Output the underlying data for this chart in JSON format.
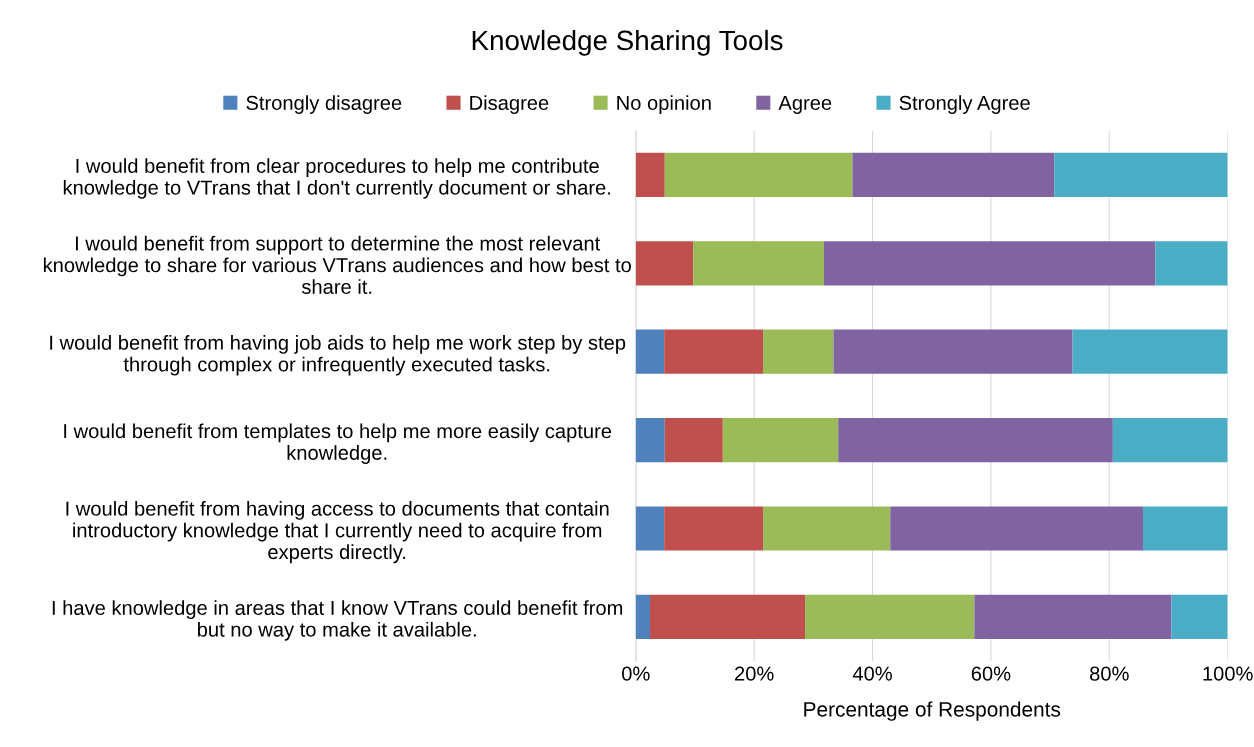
{
  "chart_data": {
    "type": "bar",
    "orientation": "horizontal",
    "stacked": true,
    "title": "Knowledge Sharing Tools",
    "xlabel": "Percentage of Respondents",
    "categories": [
      "I would benefit from clear procedures to help me contribute\nknowledge to VTrans that I don't currently document or share.",
      "I would benefit from support to determine the most relevant\nknowledge to share for various VTrans audiences and how best to\nshare it.",
      "I would benefit from having job aids to help me work step by step\nthrough complex or infrequently executed tasks.",
      "I would benefit from templates to help me more easily capture\nknowledge.",
      "I would benefit from having access to documents that contain\nintroductory knowledge that I currently need to acquire from\nexperts directly.",
      "I have knowledge in areas that I know VTrans could benefit from\nbut no way to make it available."
    ],
    "series": [
      {
        "name": "Strongly disagree",
        "color": "#4f81bd",
        "values": [
          0,
          0,
          4.8,
          4.9,
          4.8,
          2.4
        ]
      },
      {
        "name": "Disagree",
        "color": "#c0504d",
        "values": [
          4.9,
          9.7,
          16.7,
          9.8,
          16.7,
          26.2
        ]
      },
      {
        "name": "No opinion",
        "color": "#9bbb59",
        "values": [
          31.7,
          22.1,
          11.9,
          19.5,
          21.5,
          28.6
        ]
      },
      {
        "name": "Agree",
        "color": "#8064a2",
        "values": [
          34.1,
          56.0,
          40.4,
          46.4,
          42.7,
          33.3
        ]
      },
      {
        "name": "Strongly Agree",
        "color": "#4bacc6",
        "values": [
          29.3,
          12.2,
          26.2,
          19.4,
          14.3,
          9.5
        ]
      }
    ],
    "xlim": [
      0,
      100
    ],
    "xticks": [
      {
        "value": 0,
        "label": "0%"
      },
      {
        "value": 20,
        "label": "20%"
      },
      {
        "value": 40,
        "label": "40%"
      },
      {
        "value": 60,
        "label": "60%"
      },
      {
        "value": 80,
        "label": "80%"
      },
      {
        "value": 100,
        "label": "100%"
      }
    ],
    "grid": "x",
    "legend": "top"
  }
}
